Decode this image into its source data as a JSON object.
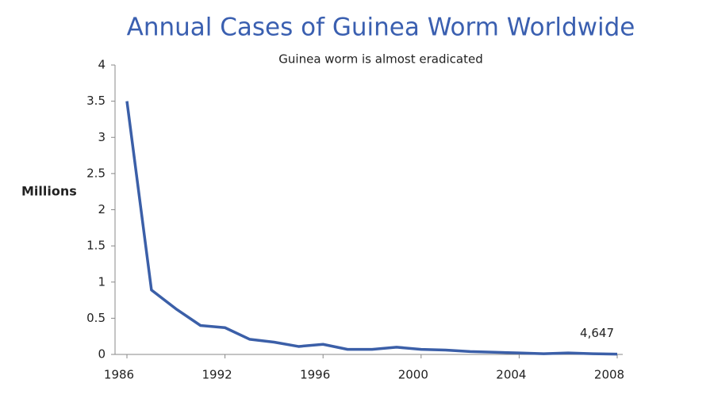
{
  "chart_data": {
    "type": "line",
    "title": "Annual Cases of Guinea Worm Worldwide",
    "subtitle": "Guinea worm is almost eradicated",
    "y_label": "Millions",
    "categories": [
      "1986",
      null,
      null,
      null,
      "1992",
      null,
      null,
      null,
      "1996",
      null,
      null,
      null,
      "2000",
      null,
      null,
      null,
      "2004",
      null,
      null,
      null,
      "2008"
    ],
    "series": [
      {
        "color": "#3b5fa8",
        "values": [
          3.5,
          0.89,
          0.63,
          0.4,
          0.37,
          0.21,
          0.17,
          0.11,
          0.14,
          0.07,
          0.07,
          0.1,
          0.07,
          0.06,
          0.04,
          0.03,
          0.02,
          0.01,
          0.02,
          0.01,
          0.004647
        ],
        "value_labels": [
          null,
          null,
          null,
          null,
          null,
          null,
          null,
          null,
          null,
          null,
          null,
          null,
          null,
          null,
          null,
          null,
          null,
          null,
          null,
          null,
          "4,647"
        ]
      }
    ],
    "ylim": [
      0,
      4
    ],
    "yticks": [
      0,
      0.5,
      1,
      1.5,
      2,
      2.5,
      3,
      3.5,
      4
    ]
  }
}
